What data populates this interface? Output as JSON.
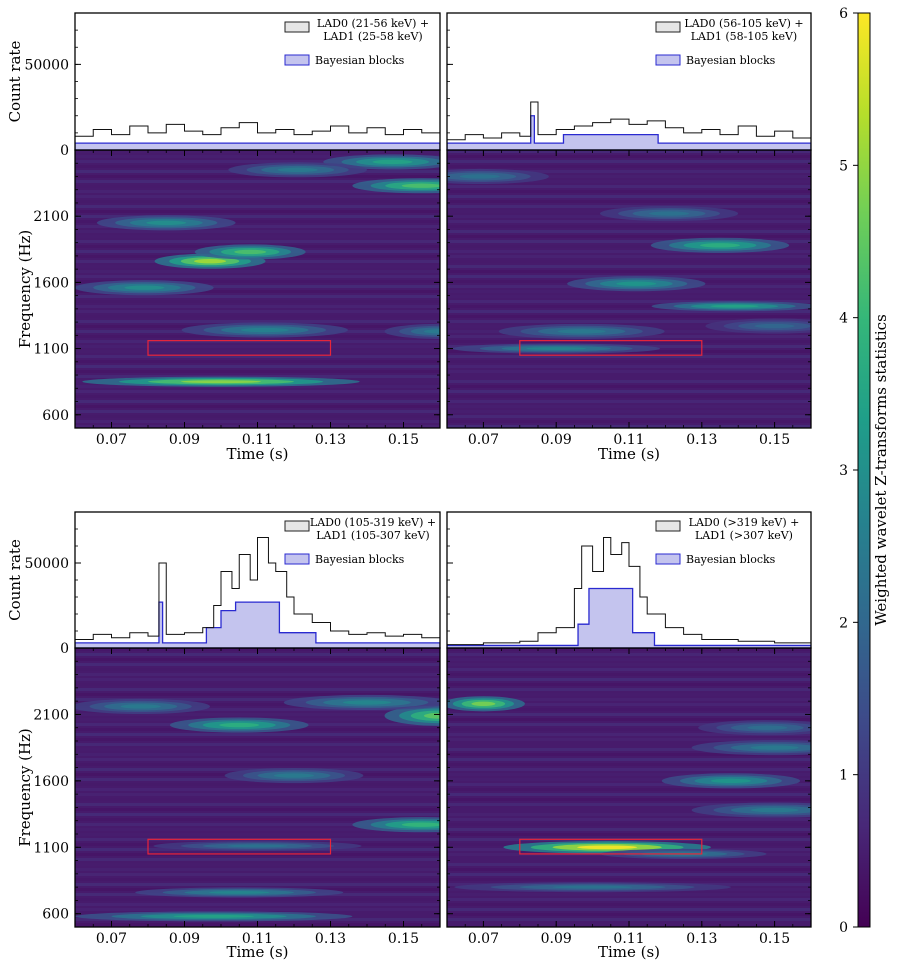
{
  "chart_data": [
    {
      "type": "line",
      "panel": "top-left",
      "ylabel": "Count rate",
      "xlabel": "",
      "ylim": [
        0,
        80000
      ],
      "yticks": [
        0,
        50000
      ],
      "xlim": [
        0.06,
        0.16
      ],
      "legend": [
        "LAD0 (21-56 keV) +",
        "LAD1 (25-58 keV)",
        "Bayesian blocks"
      ],
      "legend_position": "top-right",
      "series": [
        {
          "name": "LAD0 (21-56 keV) + LAD1 (25-58 keV)",
          "style": "histogram",
          "x": [
            0.06,
            0.065,
            0.07,
            0.075,
            0.08,
            0.085,
            0.09,
            0.095,
            0.1,
            0.105,
            0.11,
            0.115,
            0.12,
            0.125,
            0.13,
            0.135,
            0.14,
            0.145,
            0.15,
            0.155,
            0.16
          ],
          "y": [
            8000,
            12000,
            9000,
            14000,
            10000,
            15000,
            11000,
            9000,
            13000,
            16000,
            10000,
            12000,
            9000,
            11000,
            14000,
            10000,
            13000,
            9000,
            12000,
            10000,
            8000
          ]
        },
        {
          "name": "Bayesian blocks",
          "style": "step-fill",
          "x": [
            0.06,
            0.16
          ],
          "y": [
            4000,
            4000
          ]
        }
      ]
    },
    {
      "type": "line",
      "panel": "top-right",
      "ylabel": "",
      "xlabel": "",
      "ylim": [
        0,
        80000
      ],
      "xlim": [
        0.06,
        0.16
      ],
      "legend": [
        "LAD0 (56-105 keV) +",
        "LAD1 (58-105 keV)",
        "Bayesian blocks"
      ],
      "legend_position": "top-right",
      "series": [
        {
          "name": "LAD0 (56-105 keV) + LAD1 (58-105 keV)",
          "style": "histogram",
          "x": [
            0.06,
            0.065,
            0.07,
            0.075,
            0.08,
            0.083,
            0.085,
            0.09,
            0.095,
            0.1,
            0.105,
            0.11,
            0.115,
            0.12,
            0.125,
            0.13,
            0.135,
            0.14,
            0.145,
            0.15,
            0.155,
            0.16
          ],
          "y": [
            6000,
            9000,
            7000,
            10000,
            8000,
            28000,
            9000,
            12000,
            14000,
            16000,
            18000,
            15000,
            17000,
            13000,
            10000,
            12000,
            9000,
            14000,
            8000,
            11000,
            7000,
            6000
          ]
        },
        {
          "name": "Bayesian blocks",
          "style": "step-fill",
          "x": [
            0.06,
            0.083,
            0.084,
            0.092,
            0.118,
            0.16
          ],
          "y": [
            4000,
            20000,
            4000,
            9000,
            4000,
            4000
          ]
        }
      ]
    },
    {
      "type": "line",
      "panel": "bottom-left",
      "ylabel": "Count rate",
      "xlabel": "",
      "ylim": [
        0,
        80000
      ],
      "yticks": [
        0,
        50000
      ],
      "xlim": [
        0.06,
        0.16
      ],
      "legend": [
        "LAD0 (105-319 keV) +",
        "LAD1 (105-307 keV)",
        "Bayesian blocks"
      ],
      "legend_position": "top-right",
      "series": [
        {
          "name": "LAD0 (105-319 keV) + LAD1 (105-307 keV)",
          "style": "histogram",
          "x": [
            0.06,
            0.065,
            0.07,
            0.075,
            0.08,
            0.083,
            0.085,
            0.09,
            0.095,
            0.098,
            0.1,
            0.103,
            0.105,
            0.108,
            0.11,
            0.113,
            0.115,
            0.118,
            0.12,
            0.125,
            0.13,
            0.135,
            0.14,
            0.145,
            0.15,
            0.155,
            0.16
          ],
          "y": [
            5000,
            8000,
            6000,
            9000,
            7000,
            50000,
            8000,
            9000,
            12000,
            25000,
            45000,
            35000,
            55000,
            40000,
            65000,
            50000,
            45000,
            30000,
            20000,
            15000,
            10000,
            8000,
            9000,
            7000,
            8000,
            6000,
            5000
          ]
        },
        {
          "name": "Bayesian blocks",
          "style": "step-fill",
          "x": [
            0.06,
            0.083,
            0.084,
            0.096,
            0.1,
            0.104,
            0.116,
            0.126,
            0.16
          ],
          "y": [
            3000,
            27000,
            3000,
            12000,
            22000,
            27000,
            9000,
            3000,
            3000
          ]
        }
      ]
    },
    {
      "type": "line",
      "panel": "bottom-right",
      "ylabel": "",
      "xlabel": "",
      "ylim": [
        0,
        80000
      ],
      "xlim": [
        0.06,
        0.16
      ],
      "legend": [
        "LAD0 (>319 keV) +",
        "LAD1 (>307 keV)",
        "Bayesian blocks"
      ],
      "legend_position": "top-right",
      "series": [
        {
          "name": "LAD0 (>319 keV) + LAD1 (>307 keV)",
          "style": "histogram",
          "x": [
            0.06,
            0.07,
            0.08,
            0.085,
            0.09,
            0.095,
            0.097,
            0.1,
            0.103,
            0.105,
            0.108,
            0.11,
            0.113,
            0.115,
            0.12,
            0.125,
            0.13,
            0.14,
            0.15,
            0.16
          ],
          "y": [
            2000,
            3000,
            4000,
            9000,
            12000,
            35000,
            60000,
            45000,
            65000,
            55000,
            62000,
            48000,
            30000,
            20000,
            12000,
            8000,
            5000,
            4000,
            3000,
            2000
          ]
        },
        {
          "name": "Bayesian blocks",
          "style": "step-fill",
          "x": [
            0.06,
            0.096,
            0.099,
            0.111,
            0.117,
            0.16
          ],
          "y": [
            1500,
            14000,
            35000,
            9000,
            1500,
            1500
          ]
        }
      ]
    },
    {
      "type": "heatmap",
      "panel": "top-left",
      "xlabel": "Time (s)",
      "ylabel": "Frequency (Hz)",
      "xlim": [
        0.06,
        0.16
      ],
      "ylim": [
        500,
        2600
      ],
      "xticks": [
        0.07,
        0.09,
        0.11,
        0.13,
        0.15
      ],
      "xtick_labels": [
        "0.07",
        "0.09",
        "0.11",
        "0.13",
        "0.15"
      ],
      "yticks": [
        600,
        1100,
        1600,
        2100
      ],
      "highlight_box": {
        "x": [
          0.08,
          0.13
        ],
        "y": [
          1050,
          1160
        ],
        "color": "#e8253a"
      },
      "hotspots": [
        {
          "t": 0.097,
          "f": 1760,
          "z": 5.2,
          "wt": 0.008,
          "wf": 30
        },
        {
          "t": 0.108,
          "f": 1830,
          "z": 4.3,
          "wt": 0.008,
          "wf": 30
        },
        {
          "t": 0.1,
          "f": 850,
          "z": 5.0,
          "wt": 0.02,
          "wf": 20
        },
        {
          "t": 0.155,
          "f": 2330,
          "z": 4.3,
          "wt": 0.01,
          "wf": 30
        },
        {
          "t": 0.147,
          "f": 2510,
          "z": 3.5,
          "wt": 0.01,
          "wf": 30
        },
        {
          "t": 0.079,
          "f": 1560,
          "z": 3.0,
          "wt": 0.01,
          "wf": 30
        },
        {
          "t": 0.085,
          "f": 2050,
          "z": 3.0,
          "wt": 0.01,
          "wf": 30
        },
        {
          "t": 0.121,
          "f": 2450,
          "z": 2.5,
          "wt": 0.01,
          "wf": 30
        },
        {
          "t": 0.112,
          "f": 1240,
          "z": 2.7,
          "wt": 0.012,
          "wf": 30
        },
        {
          "t": 0.16,
          "f": 1230,
          "z": 2.5,
          "wt": 0.008,
          "wf": 30
        }
      ]
    },
    {
      "type": "heatmap",
      "panel": "top-right",
      "xlabel": "Time (s)",
      "ylabel": "",
      "xlim": [
        0.06,
        0.16
      ],
      "ylim": [
        500,
        2600
      ],
      "xticks": [
        0.07,
        0.09,
        0.11,
        0.13,
        0.15
      ],
      "xtick_labels": [
        "0.07",
        "0.09",
        "0.11",
        "0.13",
        "0.15"
      ],
      "yticks": [
        600,
        1100,
        1600,
        2100
      ],
      "highlight_box": {
        "x": [
          0.08,
          0.13
        ],
        "y": [
          1050,
          1160
        ],
        "color": "#e8253a"
      },
      "hotspots": [
        {
          "t": 0.135,
          "f": 1880,
          "z": 3.8,
          "wt": 0.01,
          "wf": 30
        },
        {
          "t": 0.139,
          "f": 1420,
          "z": 3.5,
          "wt": 0.012,
          "wf": 20
        },
        {
          "t": 0.112,
          "f": 1590,
          "z": 3.2,
          "wt": 0.01,
          "wf": 30
        },
        {
          "t": 0.09,
          "f": 1100,
          "z": 2.8,
          "wt": 0.015,
          "wf": 20
        },
        {
          "t": 0.069,
          "f": 2400,
          "z": 2.3,
          "wt": 0.01,
          "wf": 30
        },
        {
          "t": 0.121,
          "f": 2120,
          "z": 2.3,
          "wt": 0.01,
          "wf": 30
        },
        {
          "t": 0.097,
          "f": 1230,
          "z": 2.5,
          "wt": 0.012,
          "wf": 30
        },
        {
          "t": 0.15,
          "f": 1270,
          "z": 2.0,
          "wt": 0.01,
          "wf": 30
        }
      ]
    },
    {
      "type": "heatmap",
      "panel": "bottom-left",
      "xlabel": "Time (s)",
      "ylabel": "Frequency (Hz)",
      "xlim": [
        0.06,
        0.16
      ],
      "ylim": [
        500,
        2600
      ],
      "xticks": [
        0.07,
        0.09,
        0.11,
        0.13,
        0.15
      ],
      "xtick_labels": [
        "0.07",
        "0.09",
        "0.11",
        "0.13",
        "0.15"
      ],
      "yticks": [
        600,
        1100,
        1600,
        2100
      ],
      "highlight_box": {
        "x": [
          0.08,
          0.13
        ],
        "y": [
          1050,
          1160
        ],
        "color": "#e8253a"
      },
      "hotspots": [
        {
          "t": 0.16,
          "f": 2090,
          "z": 4.5,
          "wt": 0.008,
          "wf": 40
        },
        {
          "t": 0.155,
          "f": 1270,
          "z": 4.0,
          "wt": 0.01,
          "wf": 30
        },
        {
          "t": 0.105,
          "f": 2020,
          "z": 3.8,
          "wt": 0.01,
          "wf": 30
        },
        {
          "t": 0.14,
          "f": 2190,
          "z": 2.8,
          "wt": 0.012,
          "wf": 30
        },
        {
          "t": 0.098,
          "f": 580,
          "z": 3.5,
          "wt": 0.02,
          "wf": 20
        },
        {
          "t": 0.105,
          "f": 760,
          "z": 2.8,
          "wt": 0.015,
          "wf": 20
        },
        {
          "t": 0.078,
          "f": 2160,
          "z": 2.5,
          "wt": 0.01,
          "wf": 30
        },
        {
          "t": 0.12,
          "f": 1640,
          "z": 2.5,
          "wt": 0.01,
          "wf": 30
        },
        {
          "t": 0.11,
          "f": 1110,
          "z": 2.3,
          "wt": 0.015,
          "wf": 20
        }
      ]
    },
    {
      "type": "heatmap",
      "panel": "bottom-right",
      "xlabel": "Time (s)",
      "ylabel": "",
      "xlim": [
        0.06,
        0.16
      ],
      "ylim": [
        500,
        2600
      ],
      "xticks": [
        0.07,
        0.09,
        0.11,
        0.13,
        0.15
      ],
      "xtick_labels": [
        "0.07",
        "0.09",
        "0.11",
        "0.13",
        "0.15"
      ],
      "yticks": [
        600,
        1100,
        1600,
        2100
      ],
      "highlight_box": {
        "x": [
          0.08,
          0.13
        ],
        "y": [
          1050,
          1160
        ],
        "color": "#e8253a"
      },
      "hotspots": [
        {
          "t": 0.104,
          "f": 1100,
          "z": 6.0,
          "wt": 0.015,
          "wf": 25
        },
        {
          "t": 0.07,
          "f": 2180,
          "z": 4.8,
          "wt": 0.006,
          "wf": 30
        },
        {
          "t": 0.138,
          "f": 1600,
          "z": 3.2,
          "wt": 0.01,
          "wf": 30
        },
        {
          "t": 0.15,
          "f": 1850,
          "z": 2.5,
          "wt": 0.012,
          "wf": 30
        },
        {
          "t": 0.125,
          "f": 1050,
          "z": 2.5,
          "wt": 0.012,
          "wf": 20
        },
        {
          "t": 0.15,
          "f": 1380,
          "z": 2.5,
          "wt": 0.012,
          "wf": 30
        },
        {
          "t": 0.1,
          "f": 800,
          "z": 2.3,
          "wt": 0.02,
          "wf": 20
        },
        {
          "t": 0.148,
          "f": 2000,
          "z": 2.2,
          "wt": 0.01,
          "wf": 30
        }
      ]
    },
    {
      "type": "colorbar",
      "label": "Weighted wavelet Z-transforms statistics",
      "ticks": [
        0,
        1,
        2,
        3,
        4,
        5,
        6
      ],
      "range": [
        0,
        6
      ],
      "colormap": "viridis",
      "colors": [
        "#440154",
        "#482878",
        "#3e4989",
        "#31688e",
        "#26828e",
        "#1f9e89",
        "#35b779",
        "#6ece58",
        "#b5de2b",
        "#fde725"
      ]
    }
  ]
}
